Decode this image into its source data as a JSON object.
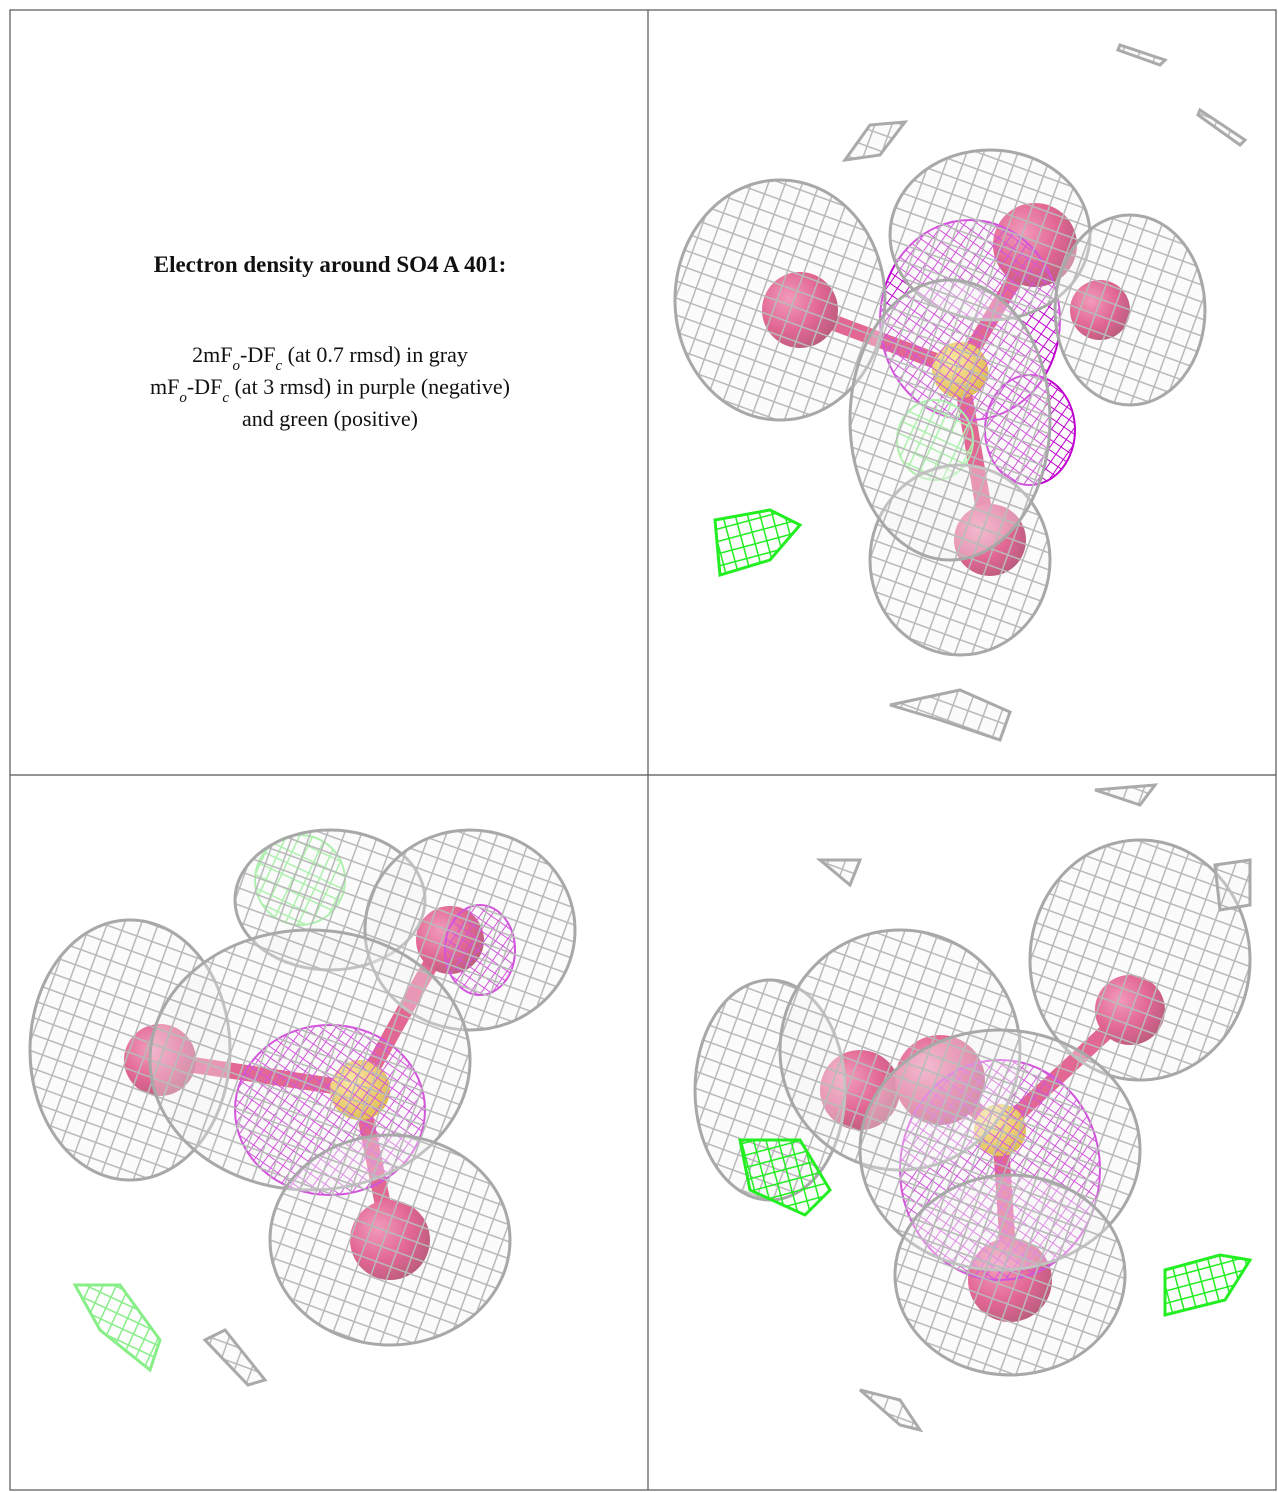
{
  "caption": {
    "title": "Electron density around SO4 A 401:",
    "lines": [
      [
        "2mF",
        "o",
        "-DF",
        "c",
        " (at 0.7 rmsd) in gray"
      ],
      [
        "mF",
        "o",
        "-DF",
        "c",
        " (at 3 rmsd) in purple (negative)"
      ],
      [
        "and green (positive)"
      ]
    ]
  }
}
